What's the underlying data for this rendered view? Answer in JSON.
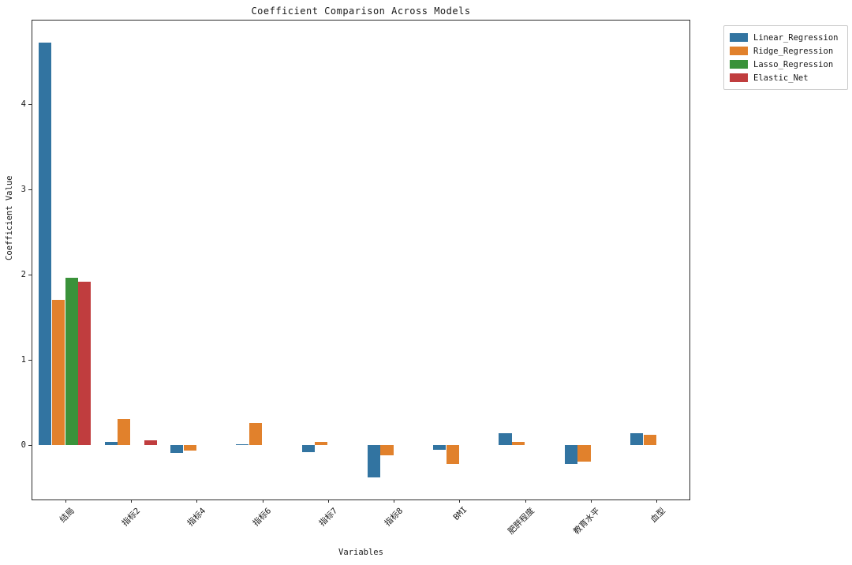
{
  "chart_data": {
    "type": "bar",
    "title": "Coefficient Comparison Across Models",
    "xlabel": "Variables",
    "ylabel": "Coefficient Value",
    "categories": [
      "结局",
      "指标2",
      "指标4",
      "指标6",
      "指标7",
      "指标8",
      "BMI",
      "肥胖程度",
      "教育水平",
      "血型"
    ],
    "series": [
      {
        "name": "Linear_Regression",
        "color": "#3274a1",
        "values": [
          4.72,
          0.04,
          -0.09,
          0.01,
          -0.08,
          -0.38,
          -0.06,
          0.14,
          -0.22,
          0.14
        ]
      },
      {
        "name": "Ridge_Regression",
        "color": "#e1812c",
        "values": [
          1.7,
          0.3,
          -0.07,
          0.26,
          0.04,
          -0.12,
          -0.22,
          0.04,
          -0.2,
          0.12
        ]
      },
      {
        "name": "Lasso_Regression",
        "color": "#3a923a",
        "values": [
          1.96,
          0,
          0,
          0,
          0,
          0,
          0,
          0,
          0,
          0
        ]
      },
      {
        "name": "Elastic_Net",
        "color": "#c03d3e",
        "values": [
          1.92,
          0.05,
          0,
          0,
          0,
          0,
          0,
          0,
          0,
          0
        ]
      }
    ],
    "ylim": [
      -0.64,
      4.98
    ],
    "yticks": [
      0,
      1,
      2,
      3,
      4
    ],
    "grid": false,
    "legend_position": "outside-top-right",
    "bar_group_width": 0.8
  }
}
